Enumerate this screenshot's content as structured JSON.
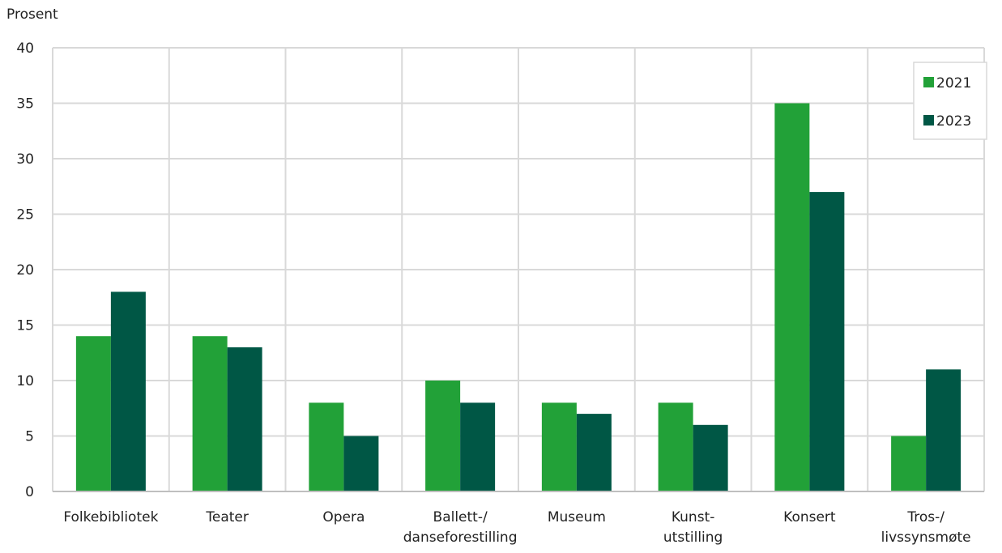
{
  "chart_data": {
    "type": "bar",
    "ylabel": "Prosent",
    "ylim": [
      0,
      40
    ],
    "yticks": [
      0,
      5,
      10,
      15,
      20,
      25,
      30,
      35,
      40
    ],
    "grid": true,
    "legend_position": "top-right",
    "categories": [
      [
        "Folkebibliotek"
      ],
      [
        "Teater"
      ],
      [
        "Opera"
      ],
      [
        "Ballett-/",
        "danseforestilling"
      ],
      [
        "Museum"
      ],
      [
        "Kunst-",
        "utstilling"
      ],
      [
        "Konsert"
      ],
      [
        "Tros-/",
        "livssynsmøte"
      ]
    ],
    "series": [
      {
        "name": "2021",
        "color": "#22a138",
        "values": [
          14,
          14,
          8,
          10,
          8,
          8,
          35,
          5
        ]
      },
      {
        "name": "2023",
        "color": "#005745",
        "values": [
          18,
          13,
          5,
          8,
          7,
          6,
          27,
          11
        ]
      }
    ]
  }
}
